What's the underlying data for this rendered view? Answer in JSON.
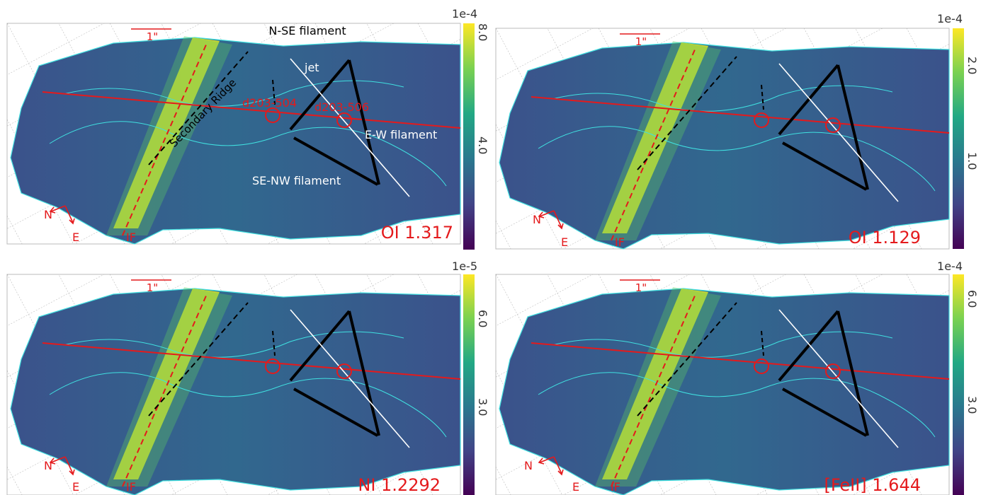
{
  "panels": [
    {
      "id": "oi1317",
      "line_label": "OI 1.317",
      "colorbar": {
        "multiplier": "1e-4",
        "ticks": [
          "8.0",
          "4.0"
        ],
        "colors": [
          "#f0e442",
          "#35b779",
          "#21908d",
          "#31688e",
          "#443a83",
          "#440154"
        ]
      },
      "scale_bar_label": "1\"",
      "compass": {
        "north": "N",
        "east": "E"
      },
      "front_label": "IF",
      "annotations": {
        "nse": "N-SE filament",
        "jet": "jet",
        "ew": "E-W filament",
        "senw": "SE-NW filament",
        "ridge": "Secondary Ridge",
        "d504": "d203-504",
        "d506": "d203-506"
      }
    },
    {
      "id": "oi1129",
      "line_label": "OI 1.129",
      "colorbar": {
        "multiplier": "1e-4",
        "ticks": [
          "2.0",
          "1.0"
        ]
      },
      "scale_bar_label": "1\"",
      "compass": {
        "north": "N",
        "east": "E"
      },
      "front_label": "IF"
    },
    {
      "id": "ni12292",
      "line_label": "NI 1.2292",
      "colorbar": {
        "multiplier": "1e-5",
        "ticks": [
          "6.0",
          "3.0"
        ]
      },
      "scale_bar_label": "1\"",
      "compass": {
        "north": "N",
        "east": "E"
      },
      "front_label": "IF"
    },
    {
      "id": "feii1644",
      "line_label": "[FeII] 1.644",
      "colorbar": {
        "multiplier": "1e-4",
        "ticks": [
          "6.0",
          "3.0"
        ]
      },
      "scale_bar_label": "1\"",
      "compass": {
        "north": "N",
        "east": "E"
      },
      "front_label": "IF"
    }
  ]
}
